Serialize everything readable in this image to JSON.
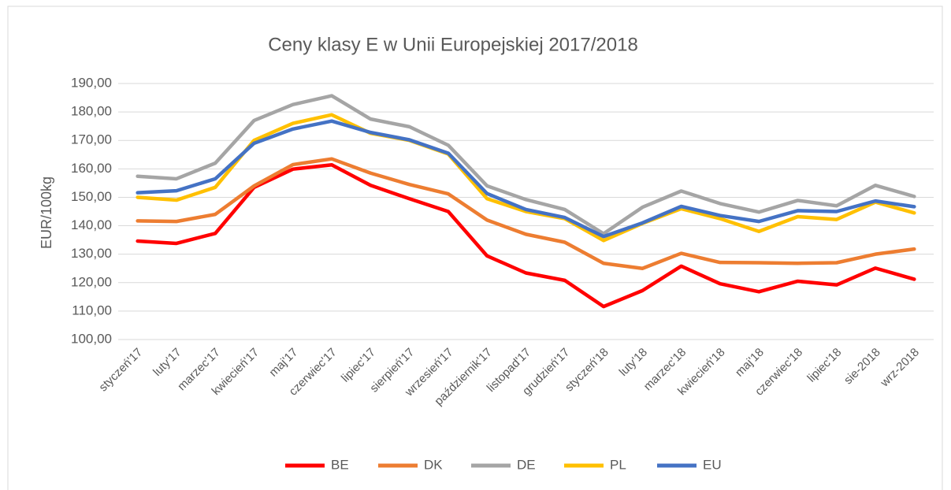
{
  "chart_data": {
    "type": "line",
    "title": "Ceny klasy E w Unii Europejskiej  2017/2018",
    "y_label": "EUR/100kg",
    "categories": [
      "styczeń'17",
      "luty'17",
      "marzec'17",
      "kwiecień'17",
      "maj'17",
      "czerwiec'17",
      "lipiec'17",
      "sierpień'17",
      "wrzesień'17",
      "październik'17",
      "listopad'17",
      "grudzień'17",
      "styczeń'18",
      "luty'18",
      "marzec'18",
      "kwiecień'18",
      "maj'18",
      "czerwiec'18",
      "lipiec'18",
      "sie-2018",
      "wrz-2018"
    ],
    "series": [
      {
        "name": "BE",
        "color": "#ff0000",
        "values": [
          134.6,
          133.8,
          137.3,
          153.5,
          159.9,
          161.4,
          154.2,
          149.5,
          145.0,
          129.4,
          123.4,
          120.8,
          111.6,
          117.2,
          125.8,
          119.6,
          116.8,
          120.5,
          119.2,
          125.1,
          121.2
        ]
      },
      {
        "name": "DK",
        "color": "#ed7d31",
        "values": [
          141.7,
          141.5,
          144.0,
          154.0,
          161.5,
          163.5,
          158.5,
          154.5,
          151.2,
          142.0,
          137.0,
          134.2,
          126.8,
          125.0,
          130.3,
          127.1,
          127.0,
          126.8,
          127.0,
          130.0,
          131.8
        ]
      },
      {
        "name": "DE",
        "color": "#a5a5a5",
        "values": [
          157.4,
          156.5,
          162.0,
          177.0,
          182.6,
          185.7,
          177.5,
          174.8,
          168.3,
          154.0,
          149.2,
          145.7,
          137.2,
          146.5,
          152.2,
          147.8,
          144.8,
          148.9,
          147.0,
          154.2,
          150.3
        ]
      },
      {
        "name": "PL",
        "color": "#ffc000",
        "values": [
          150.0,
          149.0,
          153.5,
          170.0,
          176.0,
          179.0,
          172.5,
          170.0,
          165.2,
          149.5,
          145.0,
          142.5,
          134.8,
          140.8,
          146.0,
          142.5,
          138.0,
          143.2,
          142.2,
          148.3,
          144.5
        ]
      },
      {
        "name": "EU",
        "color": "#4472c4",
        "values": [
          151.6,
          152.3,
          156.5,
          169.0,
          174.0,
          176.8,
          172.8,
          170.2,
          165.5,
          151.3,
          145.7,
          142.9,
          136.2,
          141.0,
          146.8,
          143.6,
          141.5,
          145.3,
          145.0,
          148.7,
          146.7
        ]
      }
    ],
    "ylim": [
      100,
      190
    ],
    "yticks": [
      {
        "value": 100,
        "label": "100,00"
      },
      {
        "value": 110,
        "label": "110,00"
      },
      {
        "value": 120,
        "label": "120,00"
      },
      {
        "value": 130,
        "label": "130,00"
      },
      {
        "value": 140,
        "label": "140,00"
      },
      {
        "value": 150,
        "label": "150,00"
      },
      {
        "value": 160,
        "label": "160,00"
      },
      {
        "value": 170,
        "label": "170,00"
      },
      {
        "value": 180,
        "label": "180,00"
      },
      {
        "value": 190,
        "label": "190,00"
      }
    ],
    "grid": true,
    "legend": "bottom"
  }
}
